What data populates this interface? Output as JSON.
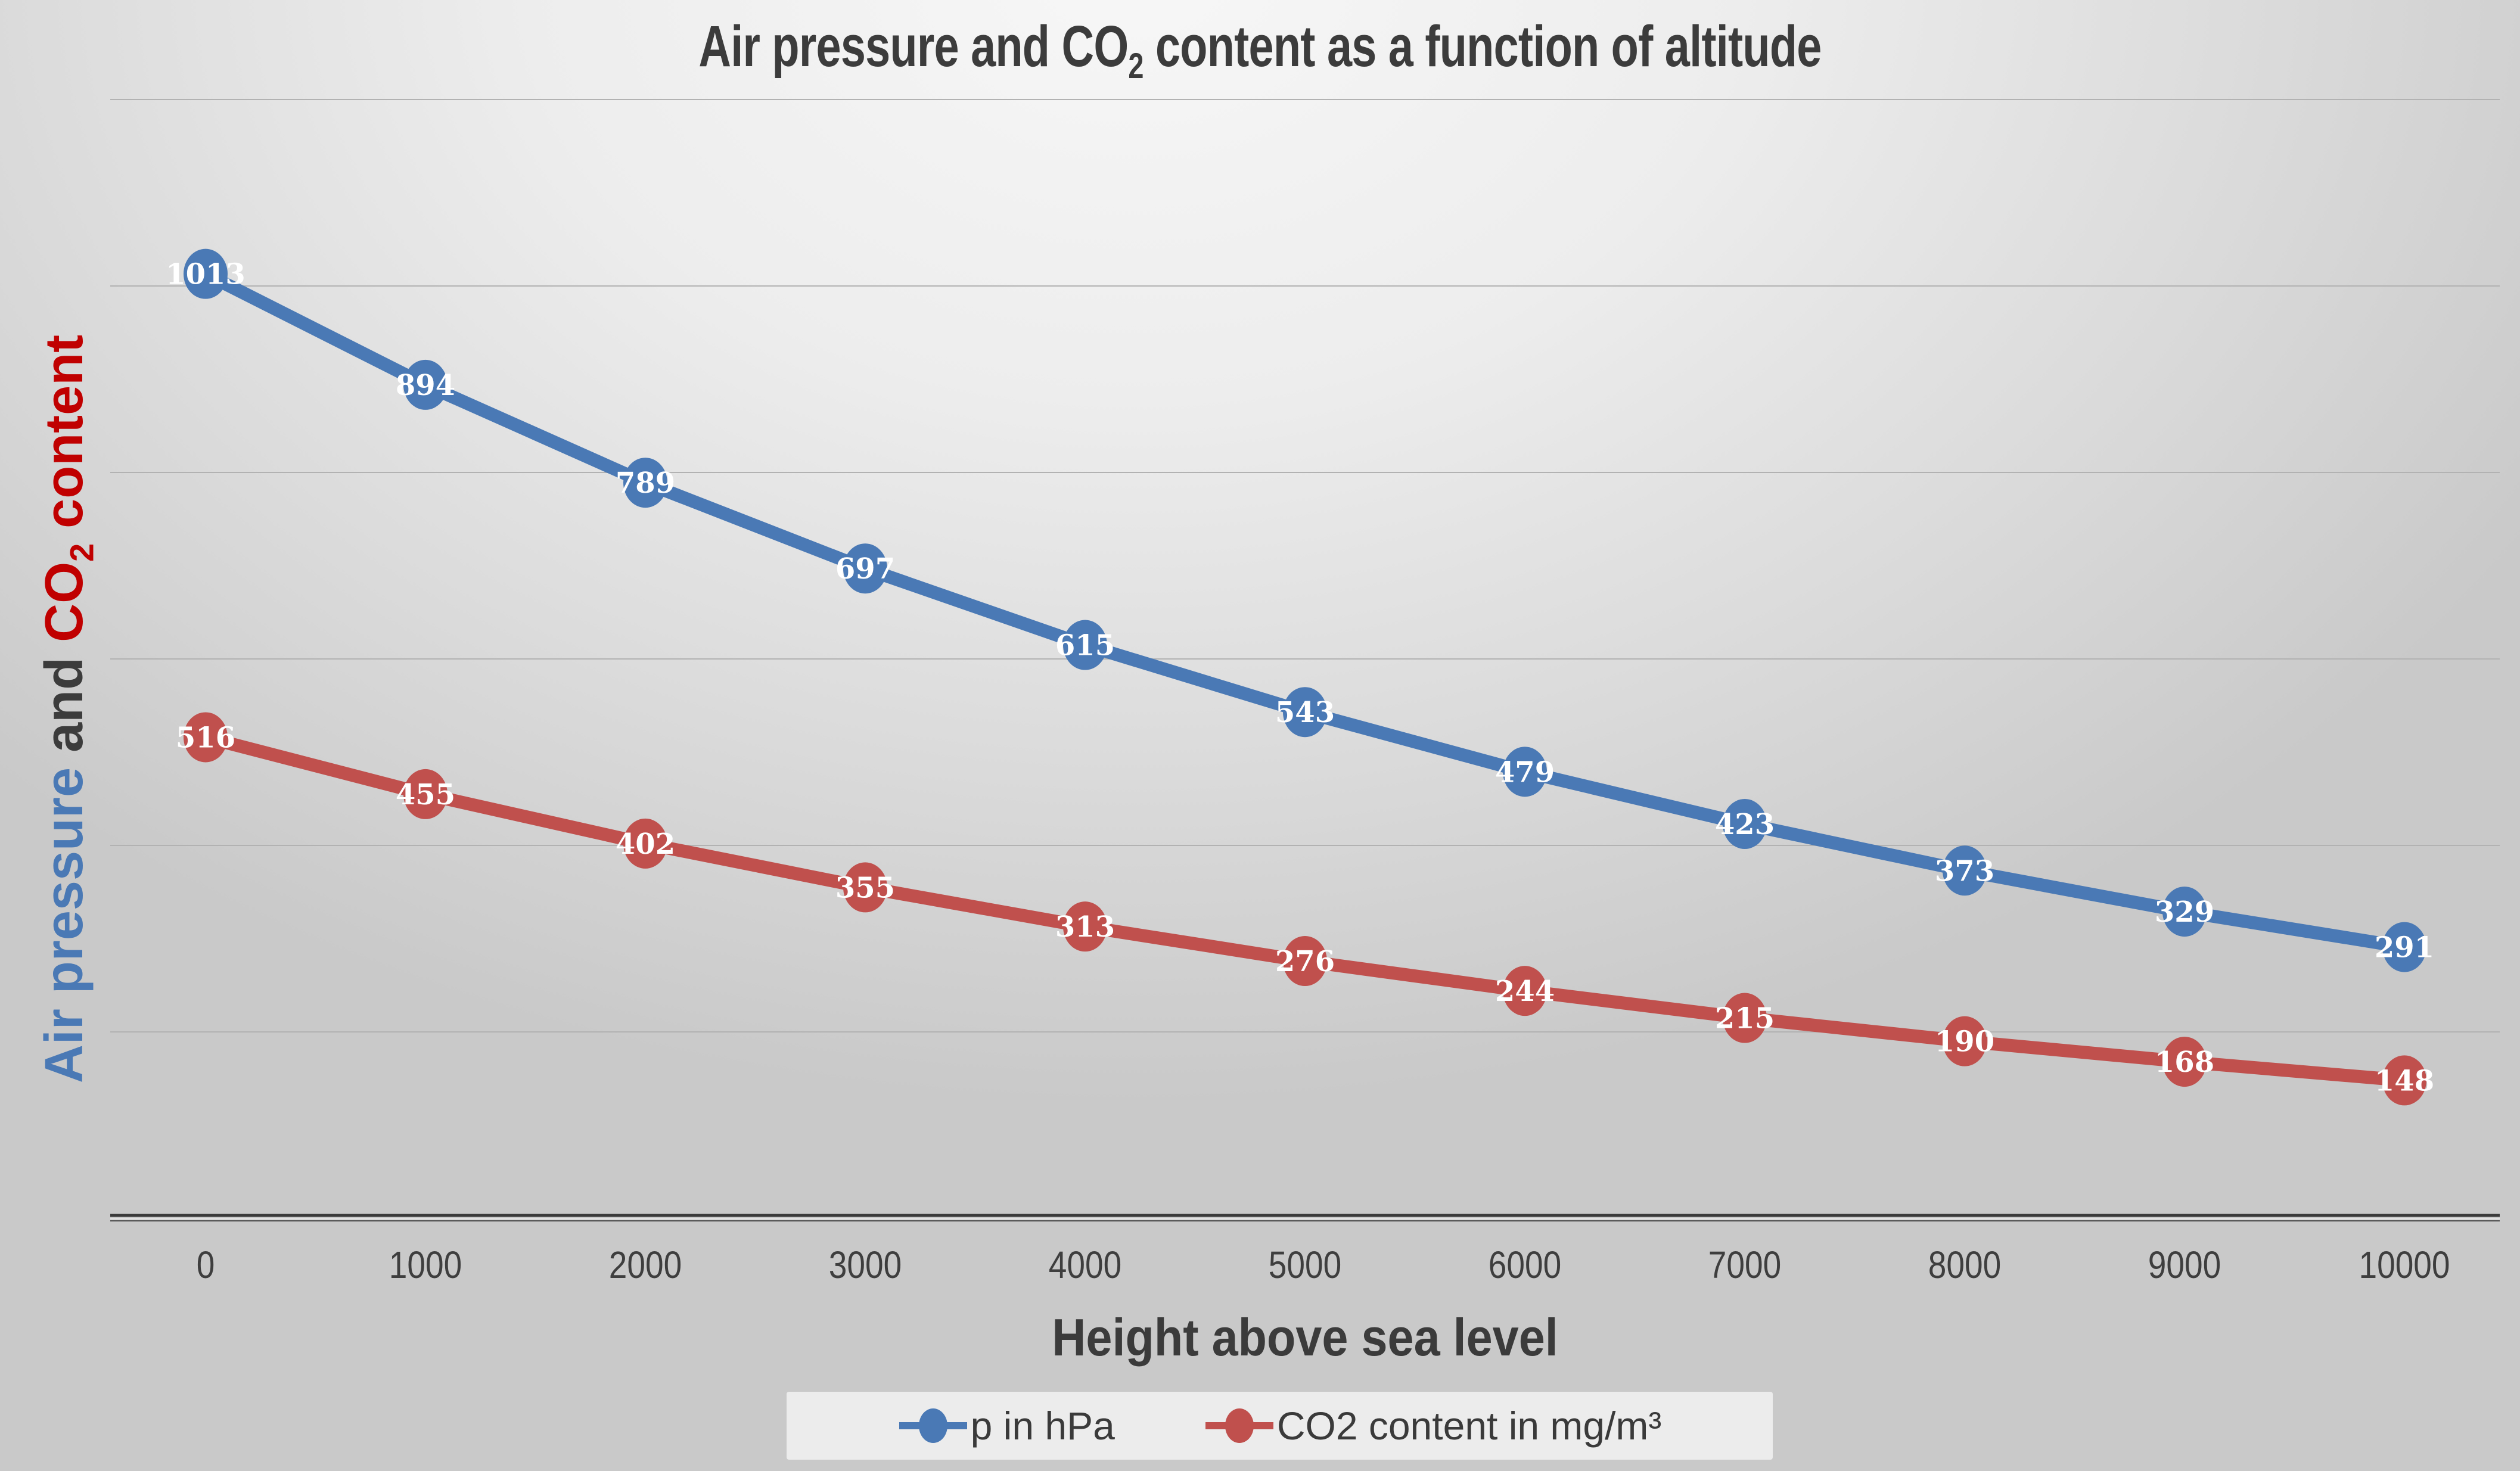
{
  "title": {
    "prefix": "Air pressure and CO",
    "subscript": "2",
    "suffix": " content as a function of altitude"
  },
  "y_axis": {
    "segment_blue": "Air pressure",
    "segment_and": " and ",
    "segment_red_prefix": "CO",
    "segment_red_subscript": "2",
    "segment_red_suffix": " content"
  },
  "x_axis": {
    "title": "Height above sea level",
    "ticks": [
      "0",
      "1000",
      "2000",
      "3000",
      "4000",
      "5000",
      "6000",
      "7000",
      "8000",
      "9000",
      "10000"
    ]
  },
  "legend": {
    "items": [
      {
        "label": "p in hPa",
        "color": "#4a79b5"
      },
      {
        "label": "CO2 content in mg/m³",
        "color": "#c0504d"
      }
    ]
  },
  "colors": {
    "series_pressure": "#4a79b5",
    "series_co2": "#c0504d",
    "ylabel_pressure_text": "#4a79b5",
    "ylabel_and_text": "#3c3c3c",
    "ylabel_co2_text": "#c00000",
    "title_text": "#3c3c3c",
    "tick_text": "#3e3e3e",
    "gridline": "#b2b2b2",
    "axis_line": "#3a3a3a",
    "data_label_text": "#ffffff",
    "legend_background": "#ececec"
  },
  "chart_data": {
    "type": "line",
    "title": "Air pressure and CO2 content as a function of altitude",
    "xlabel": "Height above sea level",
    "ylabel": "Air pressure and CO2 content",
    "x": [
      0,
      1000,
      2000,
      3000,
      4000,
      5000,
      6000,
      7000,
      8000,
      9000,
      10000
    ],
    "series": [
      {
        "name": "p in hPa",
        "color": "#4a79b5",
        "values": [
          1013,
          894,
          789,
          697,
          615,
          543,
          479,
          423,
          373,
          329,
          291
        ]
      },
      {
        "name": "CO2 content in mg/m³",
        "color": "#c0504d",
        "values": [
          516,
          455,
          402,
          355,
          313,
          276,
          244,
          215,
          190,
          168,
          148
        ]
      }
    ],
    "ylim": [
      0,
      1200
    ],
    "gridline_interval": 200,
    "grid": "horizontal-only",
    "y_tick_labels_visible": false,
    "data_labels": "inside markers",
    "marker": "circle",
    "legend_position": "bottom"
  }
}
